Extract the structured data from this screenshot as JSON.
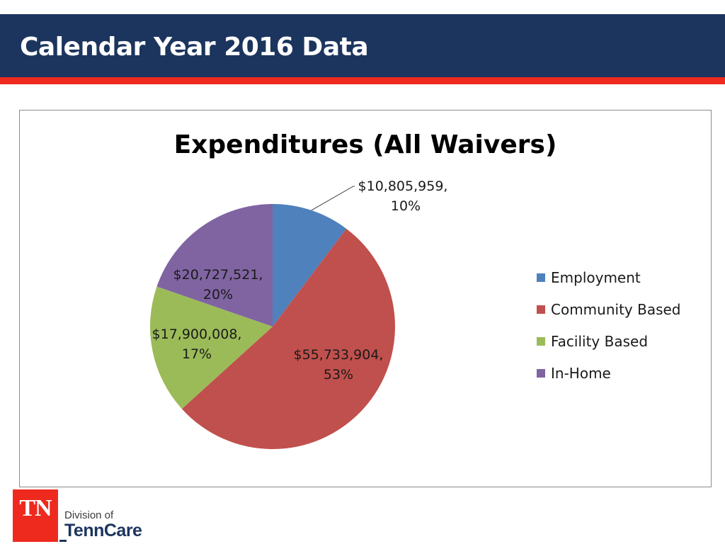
{
  "slide": {
    "title": "Calendar Year 2016 Data"
  },
  "colors": {
    "header_bg": "#1c355e",
    "header_stripe": "#ee2a1e",
    "employment": "#4f81bd",
    "community_based": "#c0504d",
    "facility_based": "#9bbb59",
    "in_home": "#8064a2"
  },
  "chart_data": {
    "type": "pie",
    "title": "Expenditures (All Waivers)",
    "categories": [
      "Employment",
      "Community Based",
      "Facility Based",
      "In-Home"
    ],
    "values": [
      10805959,
      55733904,
      17900008,
      20727521
    ],
    "percents": [
      10,
      53,
      17,
      20
    ],
    "value_labels": [
      "$10,805,959,",
      "$55,733,904,",
      "$17,900,008,",
      "$20,727,521,"
    ],
    "percent_labels": [
      "10%",
      "53%",
      "17%",
      "20%"
    ],
    "colors": [
      "#4f81bd",
      "#c0504d",
      "#9bbb59",
      "#8064a2"
    ],
    "start_angle": "12 o'clock",
    "direction": "clockwise",
    "legend_position": "right"
  },
  "logo": {
    "badge_text": "TN",
    "division_text": "Division of",
    "org_text": "TennCare"
  }
}
